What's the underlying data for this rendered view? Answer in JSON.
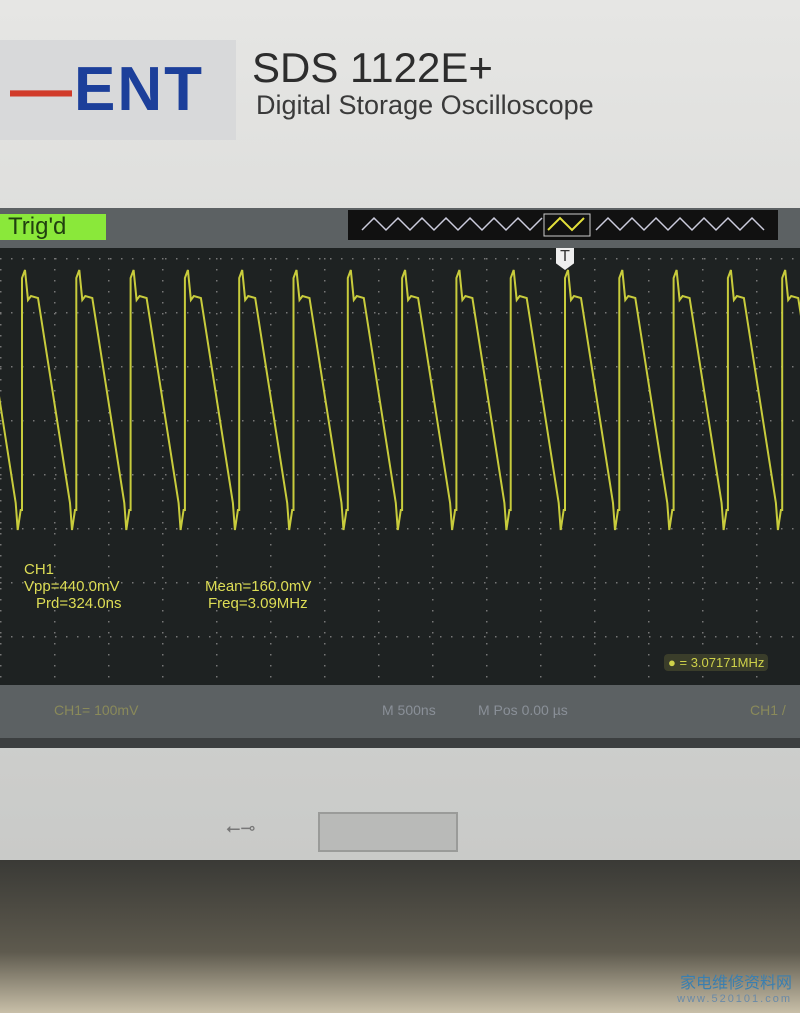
{
  "header": {
    "brand_fragment": "ENT",
    "model": "SDS 1122E+",
    "subtitle": "Digital Storage Oscilloscope"
  },
  "status": {
    "trigger_state": "Trig'd",
    "trigger_marker": "T"
  },
  "measurements": {
    "channel": "CH1",
    "vpp": "Vpp=440.0mV",
    "mean": "Mean=160.0mV",
    "period": "Prd=324.0ns",
    "freq": "Freq=3.09MHz",
    "counter": "= 3.07171MHz"
  },
  "bottom_bar": {
    "ch_scale": "CH1= 100mV",
    "timebase": "M 500ns",
    "mpos": "M Pos 0.00 µs",
    "trigger_src": "CH1 /"
  },
  "watermark": {
    "name": "家电维修资料网",
    "url": "www.520101.com"
  },
  "colors": {
    "trace": "#c8cc3c",
    "trig_badge": "#8ae83a"
  }
}
